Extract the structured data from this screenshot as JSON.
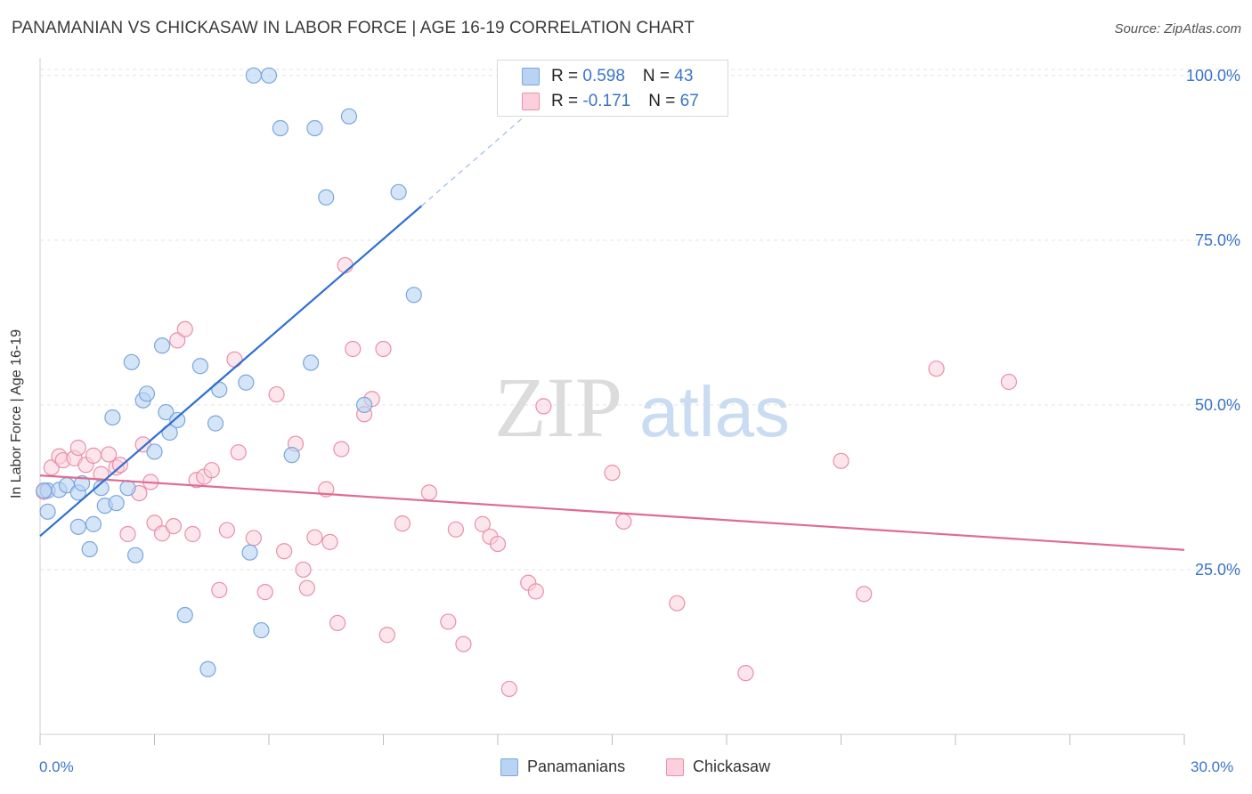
{
  "header": {
    "title": "PANAMANIAN VS CHICKASAW IN LABOR FORCE | AGE 16-19 CORRELATION CHART",
    "source": "Source: ZipAtlas.com"
  },
  "watermark": {
    "part1": "ZIP",
    "part2": "atlas"
  },
  "legend_box": {
    "rows": [
      {
        "r_label": "R = ",
        "r_value": "0.598",
        "n_label": "N = ",
        "n_value": "43",
        "color": "#a8c8f0",
        "border": "#7aa6dd"
      },
      {
        "r_label": "R = ",
        "r_value": "-0.171",
        "n_label": "N = ",
        "n_value": "67",
        "color": "#f8c3d3",
        "border": "#e890ab"
      }
    ]
  },
  "bottom_legend": {
    "items": [
      {
        "label": "Panamanians",
        "color": "#b9d4f3",
        "border": "#7aa6dd"
      },
      {
        "label": "Chickasaw",
        "color": "#fbd0dc",
        "border": "#e890ab"
      }
    ]
  },
  "chart_data": {
    "type": "scatter",
    "title": "PANAMANIAN VS CHICKASAW IN LABOR FORCE | AGE 16-19 CORRELATION CHART",
    "xlabel": "",
    "ylabel": "In Labor Force | Age 16-19",
    "xlim": [
      0,
      30
    ],
    "ylim": [
      0,
      102
    ],
    "x_tick_labels": [
      "0.0%",
      "30.0%"
    ],
    "y_ticks": [
      25,
      50,
      75,
      100
    ],
    "y_tick_labels": [
      "25.0%",
      "50.0%",
      "75.0%",
      "100.0%"
    ],
    "grid": "horizontal dashed",
    "legend_position": "top-center",
    "series": [
      {
        "name": "Panamanians",
        "color": "#7aa6dd",
        "fill": "#b9d4f3",
        "trend": {
          "x0": 0,
          "y0": 30.1,
          "x1": 10,
          "y1": 80.2,
          "dash_to_x": 13,
          "dash_to_y": 95.3,
          "color": "#2f6fd0"
        },
        "points": [
          [
            0.2,
            33.8
          ],
          [
            0.2,
            37.0
          ],
          [
            0.5,
            37.1
          ],
          [
            0.7,
            37.8
          ],
          [
            1.0,
            36.7
          ],
          [
            1.0,
            31.5
          ],
          [
            1.1,
            38.1
          ],
          [
            1.3,
            28.1
          ],
          [
            1.4,
            31.9
          ],
          [
            1.6,
            37.4
          ],
          [
            1.7,
            34.7
          ],
          [
            1.9,
            48.1
          ],
          [
            2.0,
            35.1
          ],
          [
            2.3,
            37.4
          ],
          [
            2.4,
            56.5
          ],
          [
            2.5,
            27.2
          ],
          [
            2.7,
            50.7
          ],
          [
            2.8,
            51.7
          ],
          [
            3.0,
            42.9
          ],
          [
            3.2,
            59.0
          ],
          [
            3.3,
            48.9
          ],
          [
            3.4,
            45.8
          ],
          [
            3.6,
            47.7
          ],
          [
            3.8,
            18.1
          ],
          [
            4.2,
            55.9
          ],
          [
            4.4,
            9.9
          ],
          [
            4.6,
            47.2
          ],
          [
            4.7,
            52.3
          ],
          [
            5.4,
            53.4
          ],
          [
            5.5,
            27.6
          ],
          [
            5.6,
            100.0
          ],
          [
            5.8,
            15.8
          ],
          [
            6.0,
            100.0
          ],
          [
            6.3,
            92.0
          ],
          [
            6.6,
            42.4
          ],
          [
            7.1,
            56.4
          ],
          [
            7.2,
            92.0
          ],
          [
            7.5,
            81.5
          ],
          [
            8.1,
            93.8
          ],
          [
            8.5,
            50.0
          ],
          [
            9.4,
            82.3
          ],
          [
            9.8,
            66.7
          ],
          [
            0.1,
            37.0
          ]
        ]
      },
      {
        "name": "Chickasaw",
        "color": "#e890ab",
        "fill": "#fbd0dc",
        "trend": {
          "x0": 0,
          "y0": 39.3,
          "x1": 30,
          "y1": 28.0,
          "color": "#e06b93"
        },
        "points": [
          [
            0.1,
            36.8
          ],
          [
            0.3,
            40.5
          ],
          [
            0.5,
            42.2
          ],
          [
            0.6,
            41.6
          ],
          [
            0.9,
            41.9
          ],
          [
            1.0,
            43.5
          ],
          [
            1.2,
            40.9
          ],
          [
            1.4,
            42.3
          ],
          [
            1.6,
            39.5
          ],
          [
            1.8,
            42.5
          ],
          [
            2.0,
            40.5
          ],
          [
            2.1,
            40.9
          ],
          [
            2.3,
            30.4
          ],
          [
            2.6,
            36.6
          ],
          [
            2.7,
            44.0
          ],
          [
            2.9,
            38.3
          ],
          [
            3.0,
            32.1
          ],
          [
            3.2,
            30.5
          ],
          [
            3.5,
            31.6
          ],
          [
            3.6,
            59.8
          ],
          [
            3.8,
            61.5
          ],
          [
            4.0,
            30.4
          ],
          [
            4.1,
            38.6
          ],
          [
            4.3,
            39.1
          ],
          [
            4.5,
            40.1
          ],
          [
            4.7,
            21.9
          ],
          [
            4.9,
            31.0
          ],
          [
            5.1,
            56.9
          ],
          [
            5.2,
            42.8
          ],
          [
            5.6,
            29.8
          ],
          [
            5.9,
            21.6
          ],
          [
            6.2,
            51.6
          ],
          [
            6.4,
            27.8
          ],
          [
            6.7,
            44.1
          ],
          [
            6.9,
            25.0
          ],
          [
            7.0,
            22.2
          ],
          [
            7.2,
            29.9
          ],
          [
            7.5,
            37.2
          ],
          [
            7.6,
            29.2
          ],
          [
            7.8,
            16.9
          ],
          [
            7.9,
            43.3
          ],
          [
            8.0,
            71.2
          ],
          [
            8.2,
            58.5
          ],
          [
            8.5,
            48.6
          ],
          [
            8.7,
            50.9
          ],
          [
            9.0,
            58.5
          ],
          [
            9.1,
            15.1
          ],
          [
            9.5,
            32.0
          ],
          [
            10.2,
            36.7
          ],
          [
            10.7,
            17.1
          ],
          [
            10.9,
            31.1
          ],
          [
            11.1,
            13.7
          ],
          [
            11.6,
            31.9
          ],
          [
            11.8,
            30.0
          ],
          [
            12.0,
            28.9
          ],
          [
            12.3,
            6.9
          ],
          [
            12.8,
            23.0
          ],
          [
            13.0,
            21.7
          ],
          [
            13.2,
            49.8
          ],
          [
            15.0,
            39.7
          ],
          [
            15.3,
            32.3
          ],
          [
            16.7,
            19.9
          ],
          [
            18.5,
            9.3
          ],
          [
            21.0,
            41.5
          ],
          [
            21.6,
            21.3
          ],
          [
            23.5,
            55.5
          ],
          [
            25.4,
            53.5
          ]
        ]
      }
    ]
  }
}
